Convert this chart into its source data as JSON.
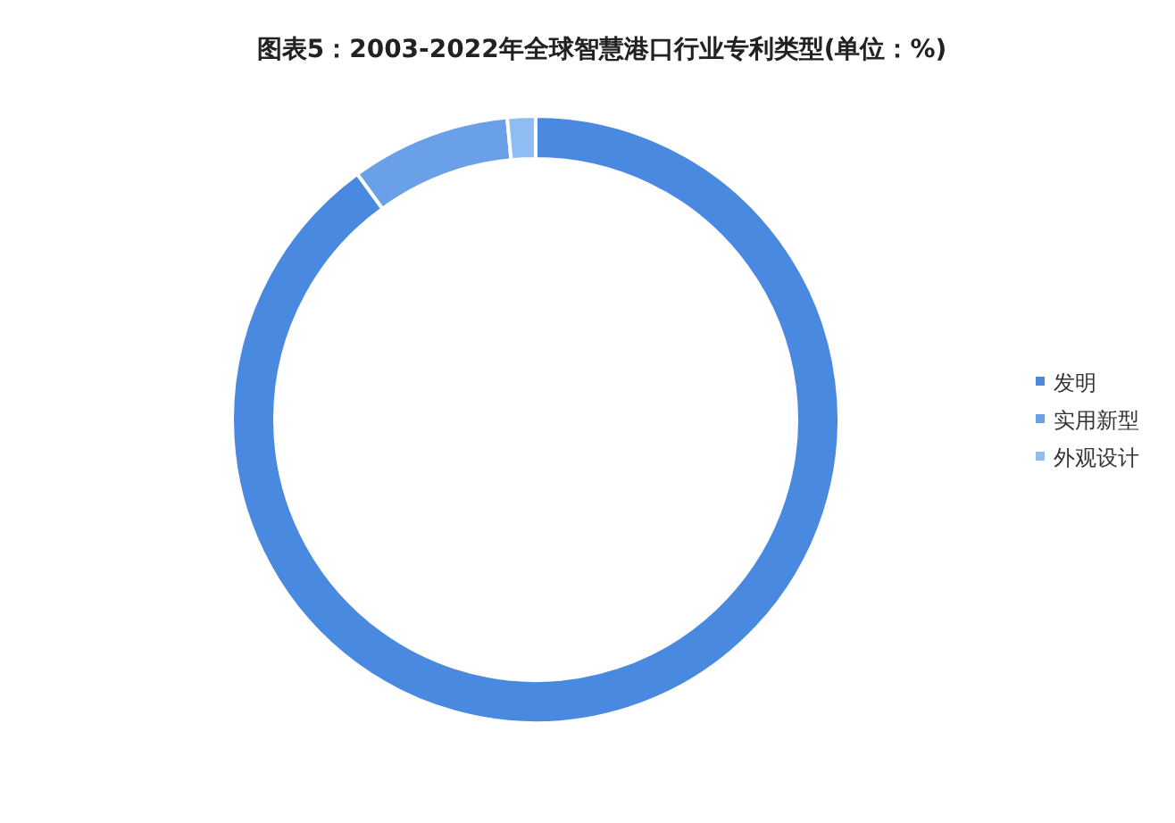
{
  "chart_data": {
    "type": "donut",
    "title": "图表5：2003-2022年全球智慧港口行业专利类型(单位：%)",
    "categories": [
      "发明",
      "实用新型",
      "外观设计"
    ],
    "values": [
      90,
      8.5,
      1.5
    ],
    "colors": [
      "#4a89e0",
      "#6aa0e8",
      "#8fbcf2"
    ],
    "legend": "right"
  }
}
